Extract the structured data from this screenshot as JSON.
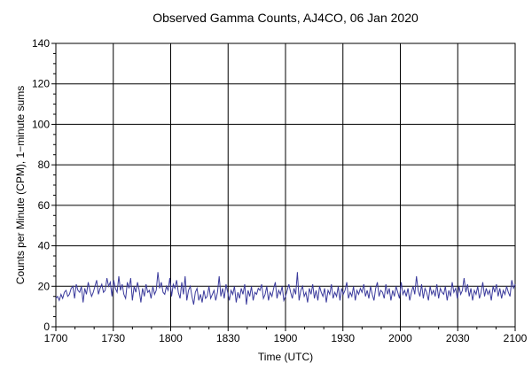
{
  "chart_data": {
    "type": "line",
    "title": "Observed Gamma Counts, AJ4CO, 06 Jan 2020",
    "xlabel": "Time (UTC)",
    "ylabel": "Counts per Minute (CPM), 1−minute sums",
    "x_start_minute": 0,
    "x_end_minute": 240,
    "xlim": [
      0,
      240
    ],
    "ylim": [
      0,
      140
    ],
    "x_ticks": [
      {
        "minute": 0,
        "label": "1700"
      },
      {
        "minute": 30,
        "label": "1730"
      },
      {
        "minute": 60,
        "label": "1800"
      },
      {
        "minute": 90,
        "label": "1830"
      },
      {
        "minute": 120,
        "label": "1900"
      },
      {
        "minute": 150,
        "label": "1930"
      },
      {
        "minute": 180,
        "label": "2000"
      },
      {
        "minute": 210,
        "label": "2030"
      },
      {
        "minute": 240,
        "label": "2100"
      }
    ],
    "y_ticks": [
      0,
      20,
      40,
      60,
      80,
      100,
      120,
      140
    ],
    "grid": true,
    "line_color": "#3a3a9c",
    "series": [
      {
        "name": "",
        "values": [
          14,
          15,
          13,
          16,
          14,
          17,
          18,
          15,
          16,
          19,
          20,
          14,
          21,
          18,
          17,
          20,
          12,
          19,
          16,
          22,
          18,
          15,
          17,
          20,
          23,
          16,
          19,
          21,
          17,
          18,
          24,
          20,
          22,
          15,
          23,
          19,
          17,
          25,
          18,
          21,
          16,
          14,
          22,
          19,
          24,
          13,
          20,
          17,
          22,
          18,
          12,
          19,
          15,
          21,
          17,
          18,
          14,
          20,
          16,
          18,
          27,
          19,
          22,
          17,
          16,
          20,
          18,
          24,
          15,
          21,
          19,
          23,
          17,
          14,
          22,
          16,
          25,
          13,
          18,
          20,
          15,
          11,
          17,
          19,
          13,
          16,
          12,
          18,
          14,
          15,
          20,
          14,
          16,
          18,
          13,
          17,
          25,
          15,
          19,
          14,
          21,
          17,
          13,
          18,
          16,
          20,
          12,
          17,
          14,
          19,
          16,
          21,
          11,
          18,
          15,
          20,
          13,
          17,
          16,
          19,
          18,
          21,
          14,
          16,
          20,
          13,
          17,
          15,
          19,
          22,
          14,
          18,
          16,
          20,
          13,
          15,
          18,
          21,
          17,
          14,
          19,
          16,
          27,
          13,
          18,
          20,
          15,
          17,
          12,
          19,
          16,
          21,
          14,
          18,
          13,
          20,
          17,
          15,
          19,
          12,
          18,
          16,
          21,
          14,
          17,
          15,
          20,
          13,
          19,
          16,
          18,
          22,
          14,
          17,
          15,
          20,
          13,
          18,
          16,
          19,
          17,
          21,
          15,
          18,
          14,
          20,
          16,
          13,
          19,
          22,
          15,
          18,
          17,
          14,
          21,
          16,
          19,
          13,
          18,
          15,
          20,
          17,
          14,
          22,
          16,
          18,
          15,
          19,
          13,
          17,
          20,
          16,
          25,
          18,
          15,
          21,
          14,
          19,
          17,
          13,
          20,
          16,
          18,
          15,
          21,
          14,
          19,
          17,
          16,
          20,
          13,
          18,
          15,
          22,
          17,
          19,
          14,
          20,
          16,
          18,
          24,
          17,
          21,
          15,
          19,
          13,
          18,
          16,
          20,
          14,
          17,
          22,
          15,
          19,
          16,
          18,
          13,
          20,
          17,
          21,
          15,
          19,
          14,
          18,
          16,
          20,
          17,
          15,
          23,
          19,
          21
        ]
      }
    ]
  }
}
